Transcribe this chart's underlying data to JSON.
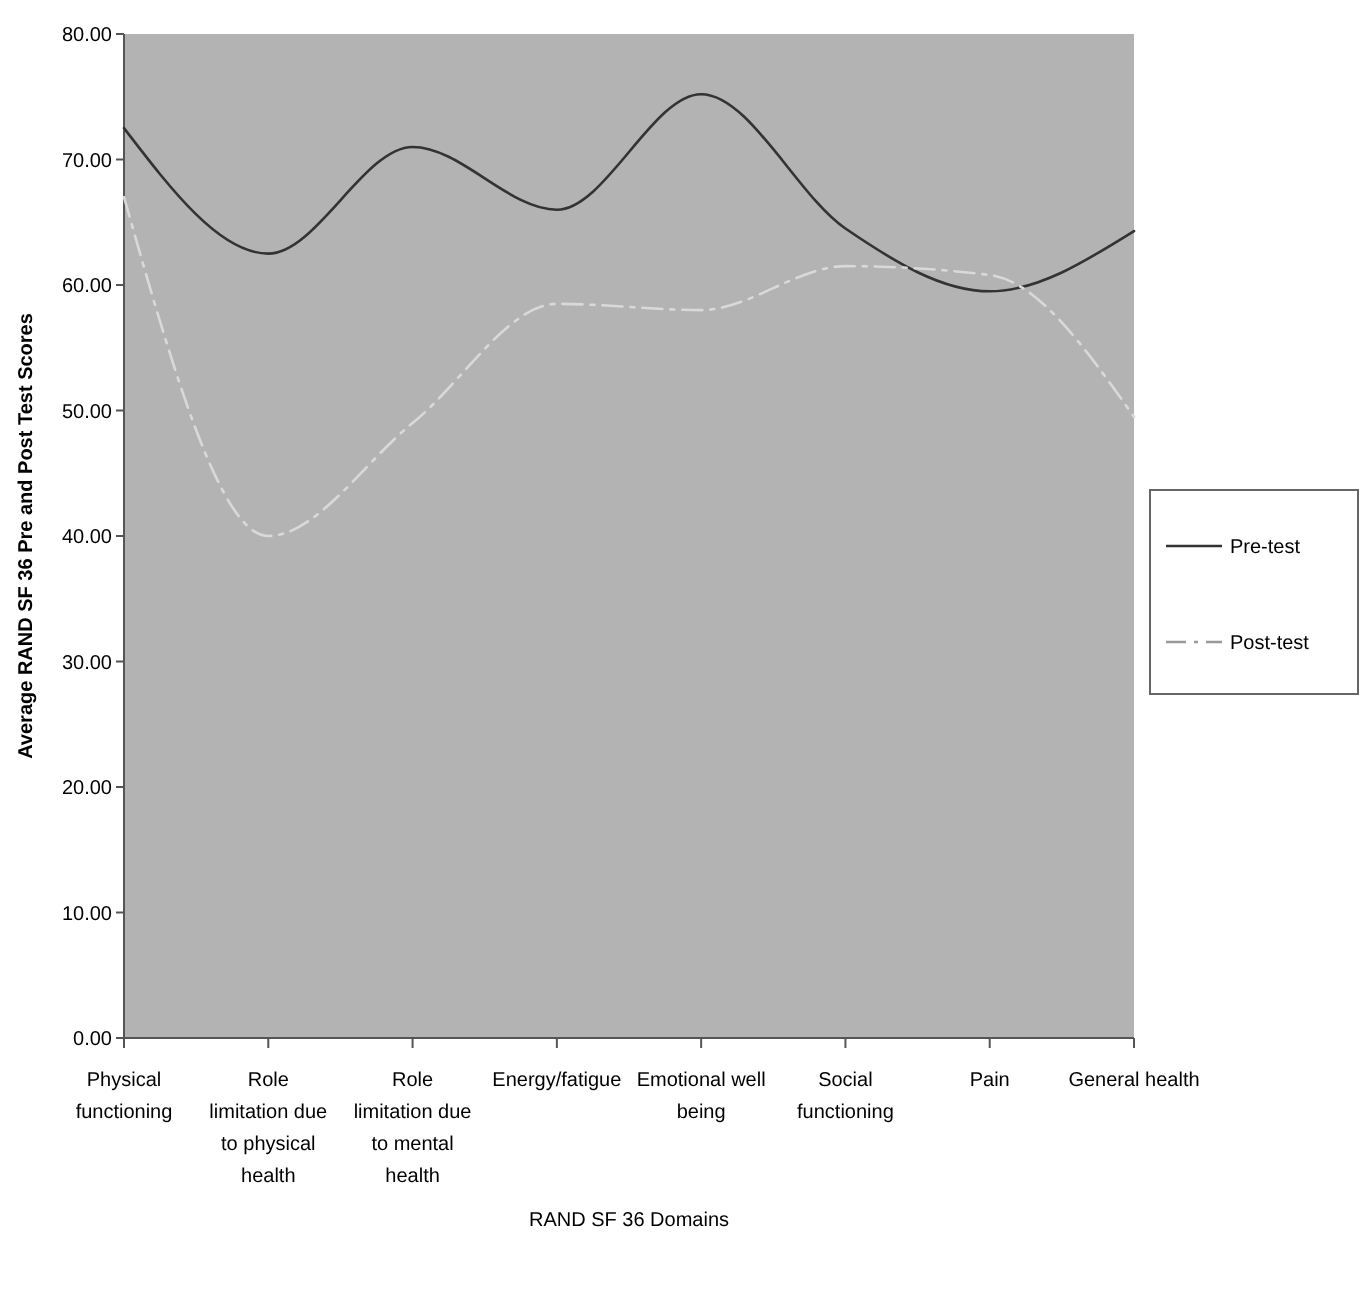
{
  "chart_data": {
    "type": "line",
    "xlabel": "RAND SF 36 Domains",
    "ylabel": "Average RAND SF 36 Pre and Post Test Scores",
    "categories": [
      "Physical functioning",
      "Role limitation due to physical health",
      "Role limitation due to mental health",
      "Energy/fatigue",
      "Emotional well being",
      "Social functioning",
      "Pain",
      "General health"
    ],
    "series": [
      {
        "name": "Pre-test",
        "color": "#333333",
        "line_style": "solid",
        "values": [
          72.5,
          62.5,
          71,
          66,
          75.2,
          64.5,
          59.5,
          64.3
        ]
      },
      {
        "name": "Post-test",
        "color": "#d9d9d9",
        "line_style": "dashdot",
        "values": [
          67,
          40,
          49,
          58.5,
          58,
          61.5,
          60.8,
          49.5
        ]
      }
    ],
    "ylim": [
      0,
      80
    ],
    "yticks": [
      {
        "value": 0,
        "label": "0.00"
      },
      {
        "value": 10,
        "label": "10.00"
      },
      {
        "value": 20,
        "label": "20.00"
      },
      {
        "value": 30,
        "label": "30.00"
      },
      {
        "value": 40,
        "label": "40.00"
      },
      {
        "value": 50,
        "label": "50.00"
      },
      {
        "value": 60,
        "label": "60.00"
      },
      {
        "value": 70,
        "label": "70.00"
      },
      {
        "value": 80,
        "label": "80.00"
      }
    ],
    "grid": false,
    "legend": "right",
    "marker": "none"
  }
}
